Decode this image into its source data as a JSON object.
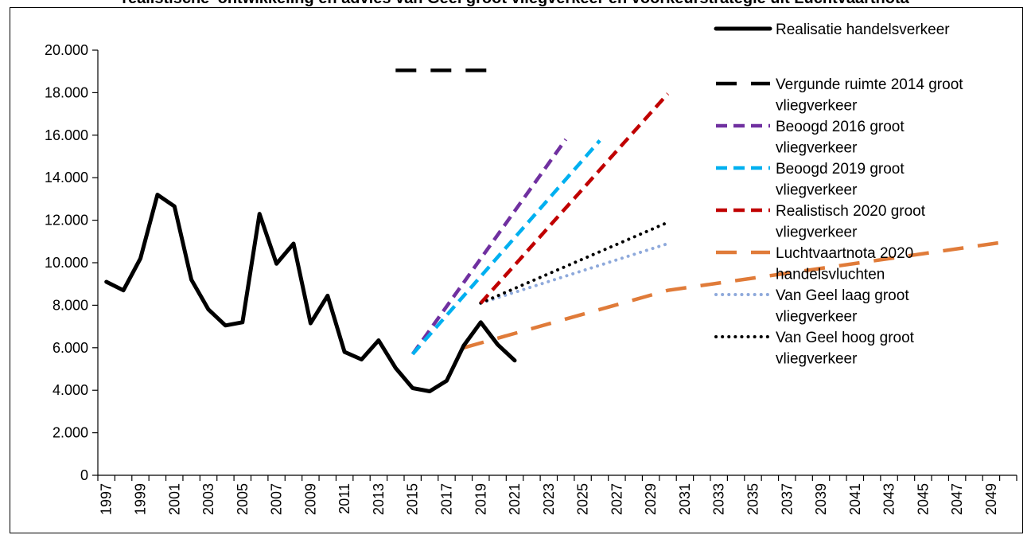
{
  "chart_data": {
    "type": "line",
    "title": "realistische' ontwikkeling en advies van Geel groot vliegverkeer en voorkeurstrategie uit Luchtvaartnota",
    "xlim": [
      1997,
      2050
    ],
    "ylim": [
      0,
      20000
    ],
    "y_ticks": [
      {
        "value": 0,
        "label": "0"
      },
      {
        "value": 2000,
        "label": "2.000"
      },
      {
        "value": 4000,
        "label": "4.000"
      },
      {
        "value": 6000,
        "label": "6.000"
      },
      {
        "value": 8000,
        "label": "8.000"
      },
      {
        "value": 10000,
        "label": "10.000"
      },
      {
        "value": 12000,
        "label": "12.000"
      },
      {
        "value": 14000,
        "label": "14.000"
      },
      {
        "value": 16000,
        "label": "16.000"
      },
      {
        "value": 18000,
        "label": "18.000"
      },
      {
        "value": 20000,
        "label": "20.000"
      }
    ],
    "x_tick_labels": [
      "1997",
      "1999",
      "2001",
      "2003",
      "2005",
      "2007",
      "2009",
      "2011",
      "2013",
      "2015",
      "2017",
      "2019",
      "2021",
      "2023",
      "2025",
      "2027",
      "2029",
      "2031",
      "2033",
      "2035",
      "2037",
      "2039",
      "2041",
      "2043",
      "2045",
      "2047",
      "2049"
    ],
    "grid": false,
    "legend_position": "right",
    "series": [
      {
        "name": "Realisatie handelsverkeer",
        "color": "#000000",
        "style": "solid",
        "points": [
          [
            1997,
            9100
          ],
          [
            1998,
            8700
          ],
          [
            1999,
            10200
          ],
          [
            2000,
            13200
          ],
          [
            2001,
            12650
          ],
          [
            2002,
            9200
          ],
          [
            2003,
            7800
          ],
          [
            2004,
            7050
          ],
          [
            2005,
            7200
          ],
          [
            2006,
            12300
          ],
          [
            2007,
            9950
          ],
          [
            2008,
            10900
          ],
          [
            2009,
            7150
          ],
          [
            2010,
            8450
          ],
          [
            2011,
            5800
          ],
          [
            2012,
            5450
          ],
          [
            2013,
            6350
          ],
          [
            2014,
            5050
          ],
          [
            2015,
            4100
          ],
          [
            2016,
            3950
          ],
          [
            2017,
            4450
          ],
          [
            2018,
            6100
          ],
          [
            2019,
            7200
          ],
          [
            2020,
            6150
          ],
          [
            2021,
            5400
          ]
        ]
      },
      {
        "name": "Vergunde ruimte 2014 groot vliegverkeer",
        "color": "#000000",
        "style": "longdash",
        "points": [
          [
            2014,
            19050
          ],
          [
            2020,
            19050
          ]
        ]
      },
      {
        "name": "Beoogd 2016 groot vliegverkeer",
        "color": "#7030a0",
        "style": "dash",
        "points": [
          [
            2015,
            5700
          ],
          [
            2024,
            15800
          ]
        ]
      },
      {
        "name": "Beoogd 2019 groot vliegverkeer",
        "color": "#00b0f0",
        "style": "dash",
        "points": [
          [
            2015,
            5700
          ],
          [
            2026,
            15750
          ]
        ]
      },
      {
        "name": "Realistisch 2020 groot vliegverkeer",
        "color": "#c00000",
        "style": "dash",
        "points": [
          [
            2019,
            8100
          ],
          [
            2030,
            17950
          ]
        ]
      },
      {
        "name": "Luchtvaartnota 2020 handelsvluchten",
        "color": "#e07b39",
        "style": "longdash",
        "points": [
          [
            2018,
            6000
          ],
          [
            2030,
            8700
          ],
          [
            2050,
            11000
          ]
        ]
      },
      {
        "name": "Van Geel laag groot vliegverkeer",
        "color": "#8ea9db",
        "style": "dot",
        "points": [
          [
            2019,
            8100
          ],
          [
            2030,
            10900
          ]
        ]
      },
      {
        "name": "Van Geel hoog groot vliegverkeer",
        "color": "#000000",
        "style": "dot",
        "points": [
          [
            2019,
            8100
          ],
          [
            2030,
            11900
          ]
        ]
      }
    ],
    "legend": [
      {
        "lines": [
          "Realisatie handelsverkeer"
        ]
      },
      {
        "lines": [
          "Vergunde ruimte 2014 groot",
          "vliegverkeer"
        ]
      },
      {
        "lines": [
          "Beoogd 2016 groot",
          "vliegverkeer"
        ]
      },
      {
        "lines": [
          "Beoogd 2019 groot",
          "vliegverkeer"
        ]
      },
      {
        "lines": [
          "Realistisch 2020 groot",
          "vliegverkeer"
        ]
      },
      {
        "lines": [
          "Luchtvaartnota 2020",
          "handelsvluchten"
        ]
      },
      {
        "lines": [
          "Van Geel laag groot",
          "vliegverkeer"
        ]
      },
      {
        "lines": [
          "Van Geel hoog groot",
          "vliegverkeer"
        ]
      }
    ]
  }
}
